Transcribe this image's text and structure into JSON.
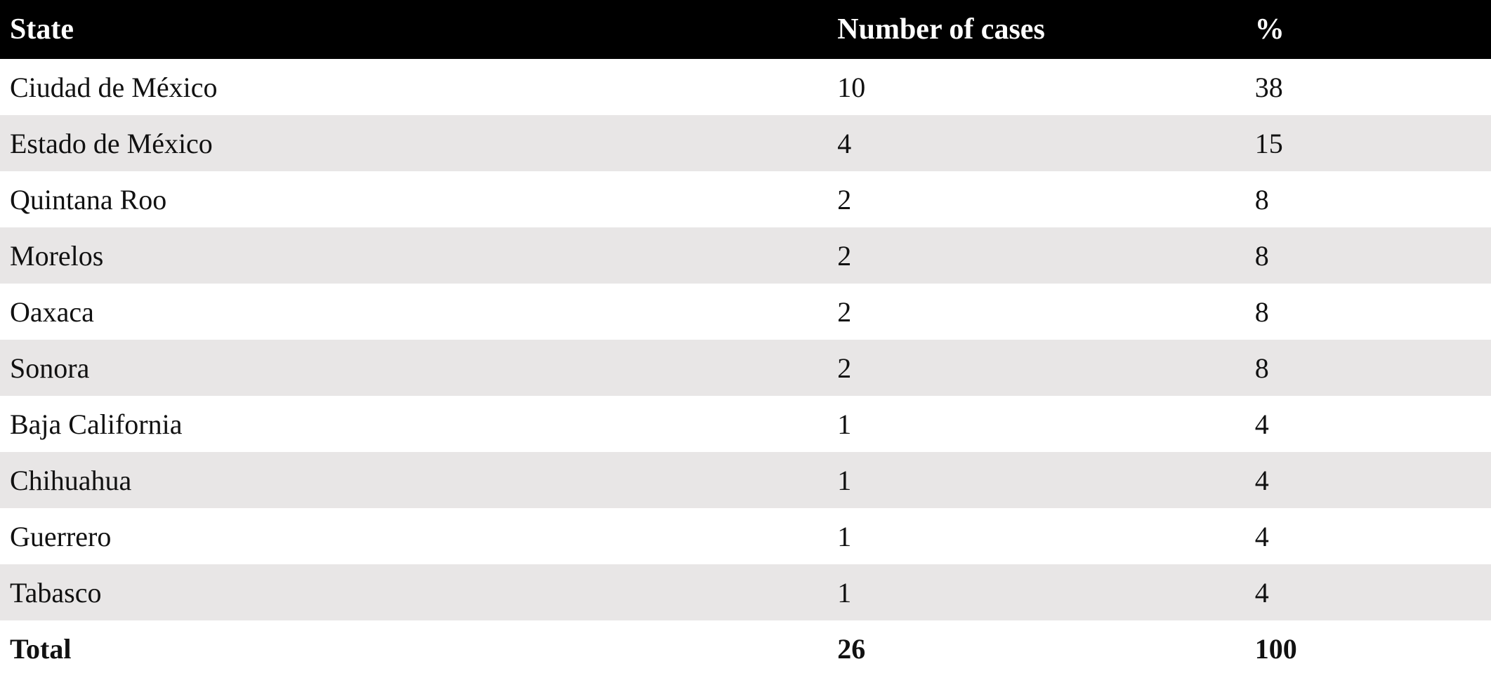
{
  "table": {
    "columns": {
      "state": "State",
      "cases": "Number of cases",
      "pct": "%"
    },
    "rows": [
      {
        "state": "Ciudad de México",
        "cases": "10",
        "pct": "38"
      },
      {
        "state": "Estado de México",
        "cases": "4",
        "pct": "15"
      },
      {
        "state": "Quintana Roo",
        "cases": "2",
        "pct": "8"
      },
      {
        "state": "Morelos",
        "cases": "2",
        "pct": "8"
      },
      {
        "state": "Oaxaca",
        "cases": "2",
        "pct": "8"
      },
      {
        "state": "Sonora",
        "cases": "2",
        "pct": "8"
      },
      {
        "state": "Baja California",
        "cases": "1",
        "pct": "4"
      },
      {
        "state": "Chihuahua",
        "cases": "1",
        "pct": "4"
      },
      {
        "state": "Guerrero",
        "cases": "1",
        "pct": "4"
      },
      {
        "state": "Tabasco",
        "cases": "1",
        "pct": "4"
      }
    ],
    "total": {
      "state": "Total",
      "cases": "26",
      "pct": "100"
    }
  },
  "colors": {
    "header_bg": "#000000",
    "header_text": "#ffffff",
    "stripe_row": "#e8e6e6"
  },
  "chart_data": {
    "type": "table",
    "title": "",
    "columns": [
      "State",
      "Number of cases",
      "%"
    ],
    "rows": [
      [
        "Ciudad de México",
        10,
        38
      ],
      [
        "Estado de México",
        4,
        15
      ],
      [
        "Quintana Roo",
        2,
        8
      ],
      [
        "Morelos",
        2,
        8
      ],
      [
        "Oaxaca",
        2,
        8
      ],
      [
        "Sonora",
        2,
        8
      ],
      [
        "Baja California",
        1,
        4
      ],
      [
        "Chihuahua",
        1,
        4
      ],
      [
        "Guerrero",
        1,
        4
      ],
      [
        "Tabasco",
        1,
        4
      ]
    ],
    "total_row": [
      "Total",
      26,
      100
    ],
    "layout_hints": {
      "header_style": "black background, white bold serif text",
      "row_striping": "alternating white and light gray starting with white",
      "grid": "off"
    }
  }
}
